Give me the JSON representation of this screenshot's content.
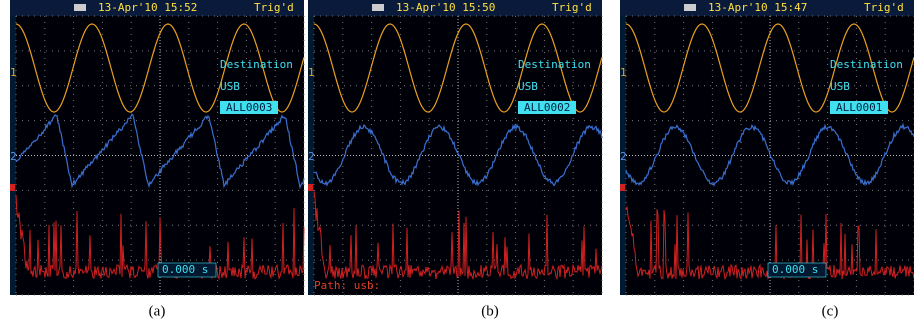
{
  "panels": [
    {
      "header": {
        "datetime": "13-Apr'10 15:52",
        "trigger": "Trig'd"
      },
      "channels": [
        "1",
        "2"
      ],
      "menu": {
        "title": "Destination",
        "device": "USB",
        "file": "ALL0003"
      },
      "footer": "0.000 s",
      "caption": "(a)"
    },
    {
      "header": {
        "datetime": "13-Apr'10 15:50",
        "trigger": "Trig'd"
      },
      "channels": [
        "1",
        "2"
      ],
      "menu": {
        "title": "Destination",
        "device": "USB",
        "file": "ALL0002"
      },
      "footer": "Path: usb:",
      "caption": "(b)"
    },
    {
      "header": {
        "datetime": "13-Apr'10 15:47",
        "trigger": "Trig'd"
      },
      "channels": [
        "1",
        "2"
      ],
      "menu": {
        "title": "Destination",
        "device": "USB",
        "file": "ALL0001"
      },
      "footer": "0.000 s",
      "caption": "(c)"
    }
  ]
}
